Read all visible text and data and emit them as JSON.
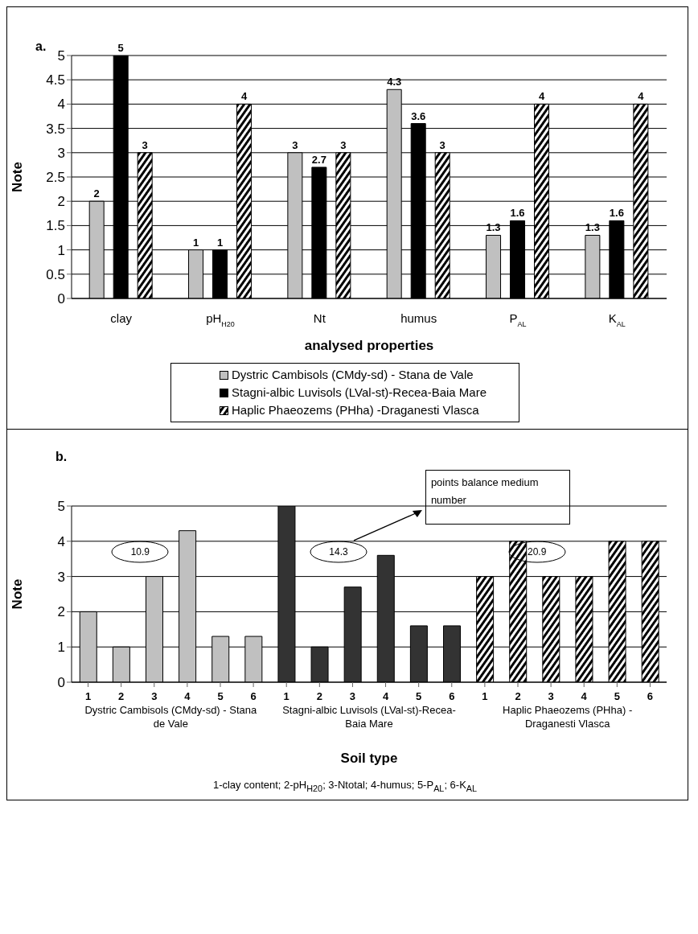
{
  "chart_data": [
    {
      "type": "bar",
      "title": "a.",
      "xlabel": "analysed properties",
      "ylabel": "Note",
      "categories": [
        "clay",
        "pH$_{H20}$",
        "Nt",
        "humus",
        "P$_{AL}$",
        "K$_{AL}$"
      ],
      "series": [
        {
          "name": "Dystric Cambisols (CMdy-sd) - Stana de Vale",
          "color": "#c0c0c0",
          "values": [
            2,
            1,
            3,
            4.3,
            1.3,
            1.3
          ]
        },
        {
          "name": "Stagni-albic Luvisols (LVal-st)-Recea-Baia Mare",
          "color": "#000000",
          "values": [
            5,
            1,
            2.7,
            3.6,
            1.6,
            1.6
          ]
        },
        {
          "name": "Haplic Phaeozems (PHha) -Draganesti Vlasca",
          "color": "#000000",
          "values": [
            3,
            4,
            3,
            3,
            4,
            4
          ]
        }
      ],
      "ylim": [
        0,
        5
      ],
      "yticks": [
        0,
        0.5,
        1,
        1.5,
        2,
        2.5,
        3,
        3.5,
        4,
        4.5,
        5
      ],
      "grid": "y",
      "legend": "bottom",
      "data_labels": true
    },
    {
      "type": "bar",
      "title": "b.",
      "xlabel": "Soil type",
      "ylabel": "Note",
      "categories": [
        "1",
        "2",
        "3",
        "4",
        "5",
        "6",
        "1",
        "2",
        "3",
        "4",
        "5",
        "6",
        "1",
        "2",
        "3",
        "4",
        "5",
        "6"
      ],
      "series": [
        {
          "name": "Dystric Cambisols (CMdy-sd) - Stana de Vale",
          "color": "#c0c0c0",
          "values": [
            2,
            1,
            3,
            4.3,
            1.3,
            1.3,
            null,
            null,
            null,
            null,
            null,
            null,
            null,
            null,
            null,
            null,
            null,
            null
          ]
        },
        {
          "name": "Stagni-albic Luvisols (LVal-st)-Recea-Baia Mare",
          "color": "#333333",
          "values": [
            null,
            null,
            null,
            null,
            null,
            null,
            5,
            1,
            2.7,
            3.6,
            1.6,
            1.6,
            null,
            null,
            null,
            null,
            null,
            null
          ]
        },
        {
          "name": "Haplic Phaeozems (PHha) - Draganesti Vlasca",
          "color": "#000000",
          "values": [
            null,
            null,
            null,
            null,
            null,
            null,
            null,
            null,
            null,
            null,
            null,
            null,
            3,
            4,
            3,
            3,
            4,
            4
          ]
        }
      ],
      "ylim": [
        0,
        5
      ],
      "yticks": [
        0,
        1,
        2,
        3,
        4,
        5
      ],
      "grid": "y",
      "annotations": [
        "10.9",
        "14.3",
        "20.9",
        "points balance medium number",
        "1-clay content; 2-pH$_{H20}$; 3-Ntotal; 4-humus; 5-P$_{AL}$; 6-K$_{AL}$"
      ]
    }
  ]
}
